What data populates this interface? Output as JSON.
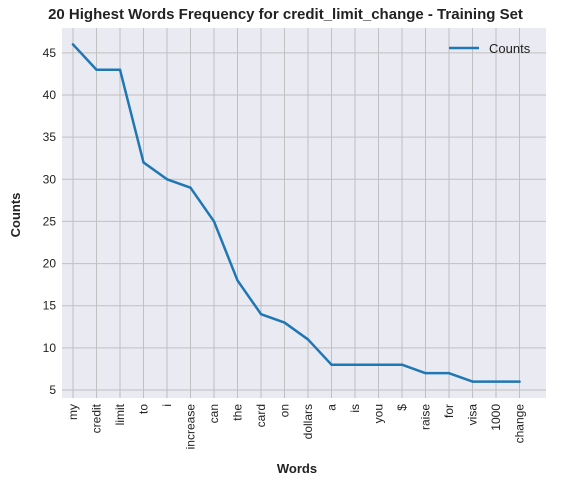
{
  "chart_data": {
    "type": "line",
    "title": "20 Highest Words Frequency for credit_limit_change - Training Set",
    "xlabel": "Words",
    "ylabel": "Counts",
    "categories": [
      "my",
      "credit",
      "limit",
      "to",
      "i",
      "increase",
      "can",
      "the",
      "card",
      "on",
      "dollars",
      "a",
      "is",
      "you",
      "$",
      "raise",
      "for",
      "visa",
      "1000",
      "change"
    ],
    "series": [
      {
        "name": "Counts",
        "values": [
          46,
          43,
          43,
          32,
          30,
          29,
          25,
          18,
          14,
          13,
          11,
          8,
          8,
          8,
          8,
          7,
          7,
          6,
          6,
          6
        ]
      }
    ],
    "yticks": [
      5,
      10,
      15,
      20,
      25,
      30,
      35,
      40,
      45
    ],
    "ylim": [
      4.05,
      47.95
    ],
    "grid": true,
    "legend_position": "top-right",
    "colors": {
      "line": "#1f77b4",
      "background": "#eaeaf2",
      "grid": "#c0c0c0"
    }
  }
}
